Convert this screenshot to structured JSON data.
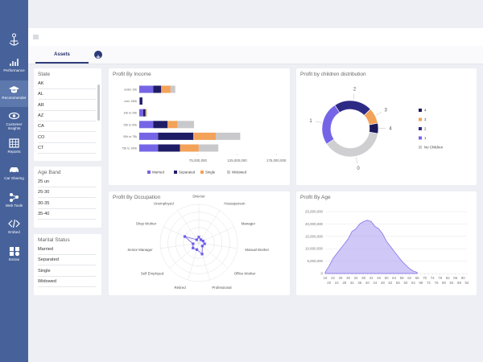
{
  "sidebar": {
    "items": [
      "Performance",
      "Recommender",
      "Customer Insights",
      "Reports",
      "Car Sharing",
      "Web Tools",
      "Embed",
      "Extras"
    ],
    "active": 1
  },
  "tabs": {
    "items": [
      "Assets"
    ],
    "active": 0
  },
  "filters": [
    {
      "title": "State",
      "items": [
        "AK",
        "AL",
        "AR",
        "AZ",
        "CA",
        "CO",
        "CT"
      ]
    },
    {
      "title": "Age Band",
      "items": [
        "25 un",
        "25-30",
        "30-35",
        "35-40"
      ]
    },
    {
      "title": "Marital Status",
      "items": [
        "Married",
        "Separated",
        "Single",
        "Widowed"
      ]
    }
  ],
  "chart_data": [
    {
      "type": "bar",
      "orientation": "horizontal",
      "stacked": true,
      "title": "Profit By Income",
      "categories": [
        "under 10k",
        "over 150k",
        "10k to 25k",
        "25k to 50k",
        "50k to 75k",
        "75k to 100k"
      ],
      "series": [
        {
          "name": "Married",
          "color": "#7565e6",
          "values": [
            18000000,
            1000000,
            5000000,
            18000000,
            24000000,
            24000000
          ]
        },
        {
          "name": "Separated",
          "color": "#1f1c66",
          "values": [
            10000000,
            3000000,
            3000000,
            18000000,
            45000000,
            28000000
          ]
        },
        {
          "name": "Single",
          "color": "#f3a259",
          "values": [
            12000000,
            0,
            1000000,
            13000000,
            29000000,
            24000000
          ]
        },
        {
          "name": "Widowed",
          "color": "#c9c9cc",
          "values": [
            6000000,
            0,
            1000000,
            21000000,
            31000000,
            25000000
          ]
        }
      ],
      "xlim": [
        0,
        180000000
      ],
      "xticks": [
        {
          "value": 75000000,
          "label": "75,000,000"
        },
        {
          "value": 125000000,
          "label": "125,000,000"
        },
        {
          "value": 175000000,
          "label": "175,000,000"
        }
      ],
      "legend": "bottom"
    },
    {
      "type": "donut",
      "title": "Profit by children distribution",
      "categories": [
        "4",
        "3",
        "2",
        "1",
        "No Children"
      ],
      "slice_labels": [
        "4",
        "3",
        "2",
        "1",
        "0"
      ],
      "values": [
        6,
        9,
        22,
        25,
        38
      ],
      "colors": [
        "#1c1a5c",
        "#f3a259",
        "#2d2a85",
        "#7565e6",
        "#cfcfd2"
      ],
      "start_angle": 100,
      "direction": "counterclockwise",
      "legend": "right"
    },
    {
      "type": "radar",
      "title": "Profit By Occupation",
      "categories": [
        "Director",
        "Houseperson",
        "Manager",
        "Manual Worker",
        "Office Worker",
        "Professional",
        "Retired",
        "Self Employed",
        "Senior Manager",
        "Shop Worker",
        "Unemployed"
      ],
      "values": [
        15,
        10,
        12,
        15,
        12,
        30,
        18,
        20,
        15,
        40,
        10
      ],
      "rlim": [
        0,
        100
      ],
      "color": "#6c5ce7"
    },
    {
      "type": "area",
      "title": "Profit By Age",
      "x": [
        18,
        20,
        22,
        24,
        26,
        28,
        30,
        32,
        34,
        36,
        38,
        40,
        42,
        44,
        46,
        48,
        50,
        52,
        54,
        56,
        58,
        60,
        62,
        64,
        66
      ],
      "values": [
        500000,
        3000000,
        6000000,
        8000000,
        10000000,
        12000000,
        14000000,
        17000000,
        18000000,
        20000000,
        21000000,
        21500000,
        21000000,
        19000000,
        18000000,
        16000000,
        13000000,
        11000000,
        9000000,
        7000000,
        5000000,
        3500000,
        2000000,
        1000000,
        500000
      ],
      "xlim": [
        18,
        92
      ],
      "xticks": [
        18,
        20,
        22,
        24,
        26,
        28,
        30,
        32,
        34,
        36,
        38,
        40,
        42,
        44,
        46,
        48,
        50,
        52,
        54,
        56,
        58,
        60,
        62,
        64,
        66,
        68,
        70,
        72,
        74,
        76,
        78,
        80,
        82,
        84,
        86,
        88,
        90,
        92
      ],
      "ylim": [
        0,
        25000000
      ],
      "yticks": [
        0,
        {
          "value": 5000000,
          "label": "5,000,000"
        },
        {
          "value": 10000000,
          "label": "10,000,000"
        },
        {
          "value": 15000000,
          "label": "15,000,000"
        },
        {
          "value": 20000000,
          "label": "20,000,000"
        },
        {
          "value": 25000000,
          "label": "25,000,000"
        }
      ],
      "color": "#a99bf1",
      "line_color": "#7565e6",
      "grid": true
    }
  ]
}
